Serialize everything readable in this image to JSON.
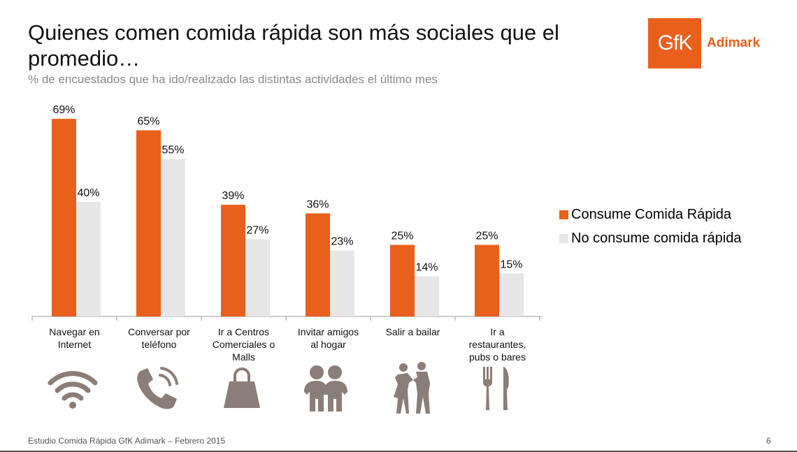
{
  "title": "Quienes comen comida rápida son más sociales que el promedio…",
  "subtitle": "% de encuestados que ha ido/realizado las distintas actividades el último mes",
  "logo": {
    "mark": "GfK",
    "text": "Adimark",
    "color": "#e8601c"
  },
  "footer": "Estudio Comida Rápida GfK Adimark – Febrero 2015",
  "page_number": "6",
  "chart_data": {
    "type": "bar",
    "categories": [
      "Navegar en Internet",
      "Conversar por teléfono",
      "Ir a Centros Comerciales o Malls",
      "Invitar amigos al hogar",
      "Salir a bailar",
      "Ir a restaurantes, pubs o bares"
    ],
    "series": [
      {
        "name": "Consume Comida Rápida",
        "values": [
          69,
          65,
          39,
          36,
          25,
          25
        ],
        "labels": [
          "69%",
          "65%",
          "39%",
          "36%",
          "25%",
          "25%"
        ],
        "color": "#e8601c"
      },
      {
        "name": "No consume comida rápida",
        "values": [
          40,
          55,
          27,
          23,
          14,
          15
        ],
        "labels": [
          "40%",
          "55%",
          "27%",
          "23%",
          "14%",
          "15%"
        ],
        "color": "#e7e7e7"
      }
    ],
    "ylim": [
      0,
      70
    ],
    "grid": false,
    "legend": "right"
  },
  "icons": [
    "wifi-icon",
    "phone-icon",
    "shopping-bag-icon",
    "friends-icon",
    "dancing-couple-icon",
    "fork-knife-icon"
  ],
  "icon_color": "#8b7d77"
}
